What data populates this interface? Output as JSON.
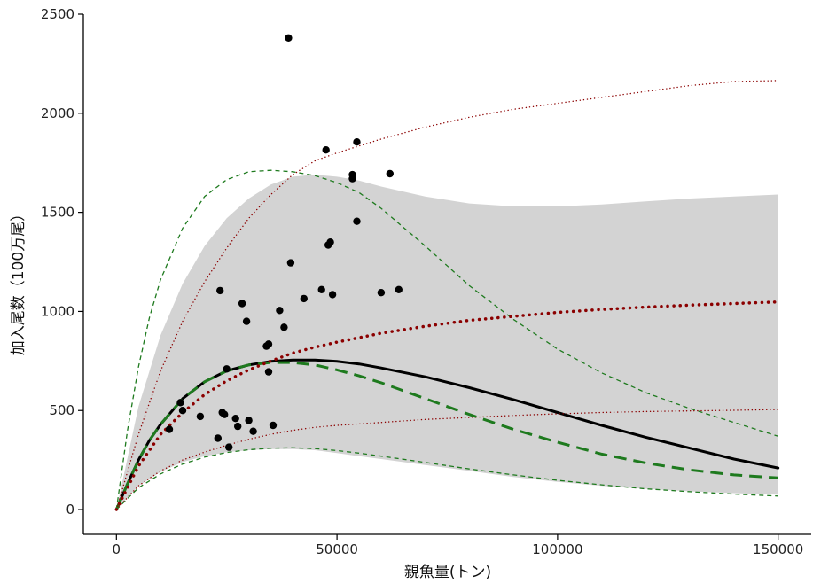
{
  "chart_data": {
    "type": "scatter",
    "xlabel": "親魚量(トン)",
    "ylabel": "加入尾数（100万尾）",
    "xlim": [
      -7500,
      157500
    ],
    "ylim": [
      -125,
      2500
    ],
    "x_ticks": [
      0,
      50000,
      100000,
      150000
    ],
    "x_tick_labels": [
      "0",
      "50000",
      "100000",
      "150000"
    ],
    "y_ticks": [
      0,
      500,
      1000,
      1500,
      2000,
      2500
    ],
    "y_tick_labels": [
      "0",
      "500",
      "1000",
      "1500",
      "2000",
      "2500"
    ],
    "grid": false,
    "points": [
      [
        12000,
        405
      ],
      [
        14500,
        540
      ],
      [
        15000,
        500
      ],
      [
        19000,
        470
      ],
      [
        23000,
        360
      ],
      [
        23500,
        1105
      ],
      [
        24000,
        490
      ],
      [
        24500,
        480
      ],
      [
        25000,
        710
      ],
      [
        25500,
        315
      ],
      [
        27000,
        460
      ],
      [
        27500,
        420
      ],
      [
        28500,
        1040
      ],
      [
        29500,
        950
      ],
      [
        30000,
        450
      ],
      [
        31000,
        395
      ],
      [
        34000,
        825
      ],
      [
        34500,
        835
      ],
      [
        34500,
        695
      ],
      [
        35500,
        425
      ],
      [
        37000,
        1005
      ],
      [
        38000,
        920
      ],
      [
        39000,
        2380
      ],
      [
        39500,
        1245
      ],
      [
        42500,
        1065
      ],
      [
        46500,
        1110
      ],
      [
        47500,
        1815
      ],
      [
        48000,
        1335
      ],
      [
        48500,
        1350
      ],
      [
        49000,
        1085
      ],
      [
        53500,
        1690
      ],
      [
        53500,
        1670
      ],
      [
        54500,
        1455
      ],
      [
        54500,
        1855
      ],
      [
        60000,
        1095
      ],
      [
        62000,
        1695
      ],
      [
        64000,
        1110
      ]
    ],
    "band": {
      "x": [
        0,
        5000,
        10000,
        15000,
        20000,
        25000,
        30000,
        35000,
        40000,
        45000,
        50000,
        55000,
        60000,
        70000,
        80000,
        90000,
        100000,
        110000,
        120000,
        130000,
        140000,
        150000
      ],
      "upper": [
        0,
        520,
        880,
        1140,
        1330,
        1470,
        1570,
        1640,
        1680,
        1690,
        1680,
        1660,
        1630,
        1580,
        1545,
        1530,
        1530,
        1540,
        1555,
        1570,
        1580,
        1590
      ],
      "lower": [
        0,
        120,
        190,
        240,
        270,
        290,
        300,
        305,
        305,
        300,
        285,
        270,
        255,
        225,
        195,
        165,
        140,
        120,
        105,
        92,
        83,
        75
      ]
    },
    "series": [
      {
        "style": "solid-black",
        "color": "#000000",
        "x": [
          0,
          2500,
          5000,
          7500,
          10000,
          15000,
          20000,
          25000,
          30000,
          35000,
          40000,
          45000,
          50000,
          55000,
          60000,
          70000,
          80000,
          90000,
          100000,
          110000,
          120000,
          130000,
          140000,
          150000
        ],
        "y": [
          0,
          130,
          250,
          350,
          430,
          560,
          645,
          700,
          730,
          748,
          755,
          755,
          748,
          735,
          715,
          670,
          615,
          555,
          490,
          425,
          365,
          310,
          255,
          210
        ]
      },
      {
        "style": "dashed-green-thick",
        "color": "#1e7a1e",
        "x": [
          0,
          2500,
          5000,
          7500,
          10000,
          15000,
          20000,
          25000,
          30000,
          35000,
          40000,
          45000,
          50000,
          55000,
          60000,
          70000,
          80000,
          90000,
          100000,
          110000,
          120000,
          130000,
          140000,
          150000
        ],
        "y": [
          0,
          130,
          250,
          350,
          430,
          560,
          645,
          700,
          730,
          742,
          742,
          730,
          705,
          675,
          640,
          560,
          480,
          405,
          340,
          280,
          235,
          200,
          175,
          160
        ]
      },
      {
        "style": "dashed-green-thin-upper",
        "color": "#1e7a1e",
        "x": [
          0,
          2500,
          5000,
          7500,
          10000,
          15000,
          20000,
          25000,
          30000,
          35000,
          40000,
          45000,
          50000,
          55000,
          60000,
          70000,
          80000,
          90000,
          100000,
          110000,
          120000,
          130000,
          140000,
          150000
        ],
        "y": [
          0,
          400,
          720,
          970,
          1160,
          1420,
          1580,
          1665,
          1705,
          1712,
          1705,
          1685,
          1650,
          1600,
          1520,
          1330,
          1130,
          960,
          810,
          690,
          590,
          510,
          440,
          370
        ]
      },
      {
        "style": "dashed-green-thin-lower",
        "color": "#1e7a1e",
        "x": [
          0,
          5000,
          10000,
          15000,
          20000,
          25000,
          30000,
          35000,
          40000,
          45000,
          50000,
          55000,
          60000,
          70000,
          80000,
          90000,
          100000,
          110000,
          120000,
          130000,
          140000,
          150000
        ],
        "y": [
          0,
          110,
          180,
          230,
          265,
          288,
          302,
          310,
          312,
          308,
          298,
          285,
          270,
          238,
          205,
          175,
          148,
          125,
          105,
          90,
          78,
          68
        ]
      },
      {
        "style": "dotted-red-thick",
        "color": "#8b0000",
        "x": [
          0,
          5000,
          10000,
          15000,
          20000,
          25000,
          30000,
          35000,
          40000,
          45000,
          50000,
          60000,
          70000,
          80000,
          90000,
          100000,
          110000,
          120000,
          130000,
          140000,
          150000
        ],
        "y": [
          0,
          220,
          380,
          490,
          580,
          650,
          705,
          750,
          790,
          820,
          845,
          890,
          925,
          955,
          975,
          995,
          1010,
          1022,
          1032,
          1040,
          1048
        ]
      },
      {
        "style": "dotted-red-thin-upper",
        "color": "#8b0000",
        "x": [
          0,
          5000,
          10000,
          15000,
          20000,
          25000,
          30000,
          35000,
          40000,
          45000,
          50000,
          60000,
          70000,
          80000,
          90000,
          100000,
          110000,
          120000,
          130000,
          140000,
          150000
        ],
        "y": [
          0,
          380,
          700,
          950,
          1150,
          1320,
          1470,
          1590,
          1690,
          1760,
          1800,
          1870,
          1930,
          1980,
          2020,
          2050,
          2080,
          2110,
          2140,
          2160,
          2165
        ]
      },
      {
        "style": "dotted-red-thin-lower",
        "color": "#8b0000",
        "x": [
          0,
          5000,
          10000,
          15000,
          20000,
          25000,
          30000,
          35000,
          40000,
          45000,
          50000,
          60000,
          70000,
          80000,
          90000,
          100000,
          110000,
          120000,
          130000,
          140000,
          150000
        ],
        "y": [
          0,
          120,
          195,
          250,
          290,
          325,
          355,
          380,
          400,
          415,
          425,
          440,
          455,
          465,
          475,
          483,
          490,
          495,
          498,
          501,
          505
        ]
      }
    ]
  }
}
